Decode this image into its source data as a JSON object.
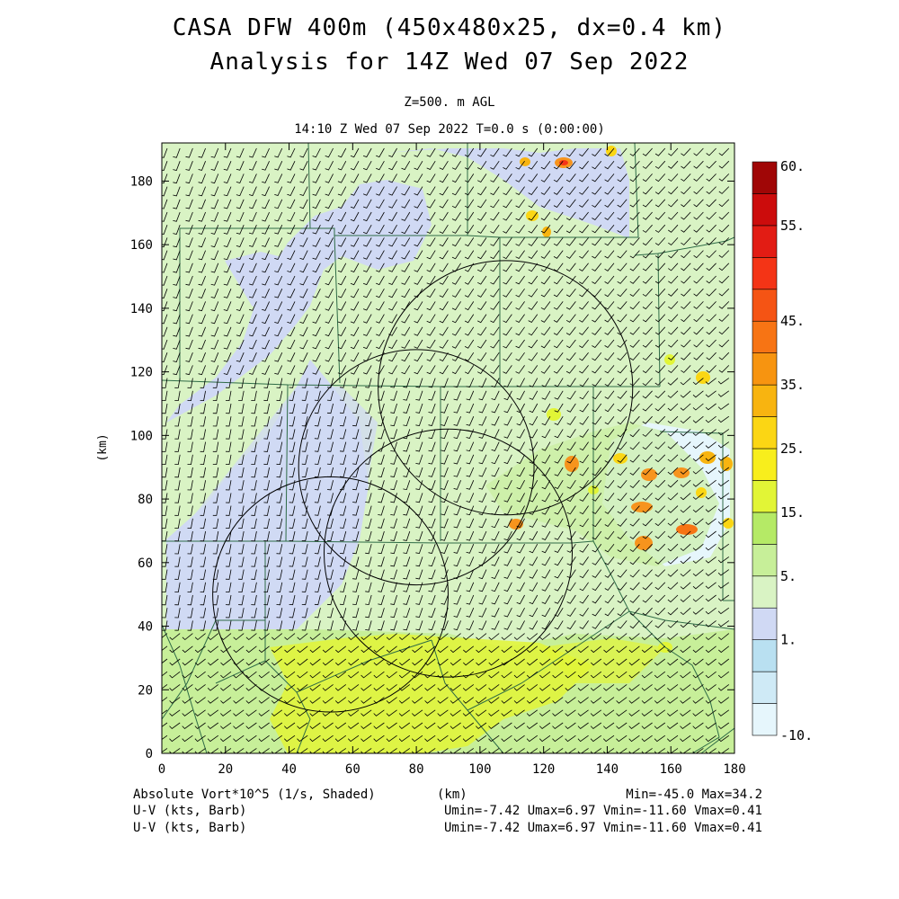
{
  "header": {
    "title_line1": "CASA DFW 400m (450x480x25, dx=0.4 km)",
    "title_line2": "Analysis for 14Z Wed 07 Sep 2022",
    "level": "Z=500. m AGL",
    "valid_time": "14:10 Z Wed 07 Sep 2022   T=0.0 s (0:00:00)"
  },
  "footer": {
    "field1": "Absolute Vort*10^5 (1/s, Shaded)",
    "field2": "U-V (kts, Barb)",
    "field3": "U-V (kts, Barb)",
    "field1_stats": "Min=-45.0 Max=34.2",
    "field2_stats": "Umin=-7.42 Umax=6.97 Vmin=-11.60 Vmax=0.41",
    "field3_stats": "Umin=-7.42 Umax=6.97 Vmin=-11.60 Vmax=0.41"
  },
  "chart_data": {
    "type": "heatmap",
    "xlabel": "(km)",
    "ylabel": "(km)",
    "xlim": [
      0,
      180
    ],
    "ylim": [
      0,
      192
    ],
    "x_ticks": [
      "0",
      "20",
      "40",
      "60",
      "80",
      "100",
      "120",
      "140",
      "160",
      "180"
    ],
    "y_ticks": [
      "0",
      "20",
      "40",
      "60",
      "80",
      "100",
      "120",
      "140",
      "160",
      "180"
    ],
    "radar_ranges_km": [
      {
        "center": [
          108,
          115
        ],
        "radius": 40
      },
      {
        "center": [
          80,
          90
        ],
        "radius": 37
      },
      {
        "center": [
          90,
          63
        ],
        "radius": 39
      },
      {
        "center": [
          53,
          50
        ],
        "radius": 37
      }
    ],
    "colorbar": {
      "colors": [
        "#e6f6fc",
        "#cfeaf6",
        "#b9e0f1",
        "#d0d9f4",
        "#d9f3c4",
        "#c7ef99",
        "#b5ea66",
        "#e2f536",
        "#f8ee1c",
        "#fbd614",
        "#f8b410",
        "#f79410",
        "#f77414",
        "#f55414",
        "#f43416",
        "#e21c14",
        "#cc0c0c",
        "#a00606"
      ],
      "tick_labels": [
        {
          "label": "-10.",
          "index": 0
        },
        {
          "label": "1.",
          "index": 3
        },
        {
          "label": "5.",
          "index": 5
        },
        {
          "label": "15.",
          "index": 7
        },
        {
          "label": "25.",
          "index": 9
        },
        {
          "label": "35.",
          "index": 11
        },
        {
          "label": "45.",
          "index": 13
        },
        {
          "label": "55.",
          "index": 16
        },
        {
          "label": "60.",
          "index": 17
        }
      ]
    }
  }
}
